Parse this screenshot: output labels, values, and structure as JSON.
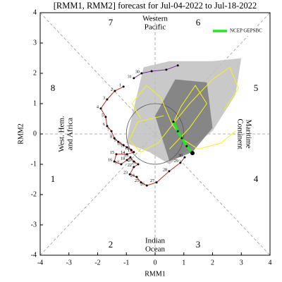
{
  "chart_data": {
    "type": "phase",
    "title": "[RMM1, RMM2] forecast for Jul-04-2022 to Jul-18-2022",
    "x_label": "RMM1",
    "y_label": "RMM2",
    "xlim": [
      -4,
      4
    ],
    "ylim": [
      -4,
      4
    ],
    "xticks": [
      -4,
      -3,
      -2,
      -1,
      0,
      1,
      2,
      3,
      4
    ],
    "yticks": [
      -4,
      -3,
      -2,
      -1,
      0,
      1,
      2,
      3,
      4
    ],
    "phase_labels": [
      "1",
      "2",
      "3",
      "4",
      "5",
      "6",
      "7",
      "8"
    ],
    "region_labels": [
      [
        "Western",
        "Pacific"
      ],
      [
        "Indian",
        "Ocean"
      ],
      [
        "West. Hem.",
        "and Africa"
      ],
      [
        "Maritime",
        "Continent"
      ]
    ],
    "spread": [
      {
        "color": "#c0c0c0",
        "x": [
          -0.9,
          -0.4,
          0.5,
          2.0,
          3.0,
          2.8,
          2.0,
          0.5,
          -0.2,
          -1.0
        ],
        "y": [
          0.2,
          2.2,
          2.4,
          2.4,
          2.5,
          1.3,
          0.1,
          -1.0,
          -0.6,
          -0.3
        ]
      },
      {
        "color": "#7a7a7a",
        "x": [
          0.0,
          0.7,
          1.8,
          2.0,
          1.3,
          0.5
        ],
        "y": [
          0.6,
          1.8,
          1.7,
          0.2,
          -0.6,
          -0.9
        ]
      }
    ],
    "ensemble": {
      "color": "#f2f21e",
      "members": [
        {
          "x": [
            0.6,
            1.2,
            2.0,
            2.6,
            2.9,
            2.4
          ],
          "y": [
            0.3,
            1.0,
            1.8,
            2.2,
            1.5,
            0.8
          ]
        },
        {
          "x": [
            0.6,
            0.2,
            -0.3,
            -0.8,
            -0.5
          ],
          "y": [
            0.3,
            1.2,
            1.6,
            1.0,
            0.5
          ]
        },
        {
          "x": [
            0.6,
            1.0,
            1.5,
            2.3,
            2.8
          ],
          "y": [
            0.3,
            -0.2,
            -0.5,
            -0.3,
            0.1
          ]
        },
        {
          "x": [
            0.6,
            0.9,
            1.4,
            1.8,
            1.2,
            0.5
          ],
          "y": [
            0.3,
            0.9,
            1.6,
            1.0,
            0.2,
            -0.5
          ]
        },
        {
          "x": [
            0.6,
            0.1,
            -0.5,
            -0.9,
            -0.6,
            0.3
          ],
          "y": [
            0.3,
            -0.3,
            -0.6,
            -0.2,
            0.4,
            0.6
          ]
        }
      ]
    },
    "observed": [
      {
        "color": "#7030a0",
        "x": [
          0.79,
          0.39,
          -0.12,
          -0.47,
          -0.74
        ],
        "y": [
          2.26,
          2.12,
          2.07,
          2.0,
          1.84
        ],
        "labels": [
          null,
          null,
          null,
          "30",
          "31"
        ]
      },
      {
        "color": "#cc2222",
        "x": [
          -1.1,
          -1.4,
          -1.67,
          -1.89,
          -1.72,
          -1.67,
          -1.52,
          -1.42,
          -1.28,
          -1.1,
          -0.98,
          -0.83,
          -0.74,
          -0.98,
          -1.35,
          -1.42,
          -1.18,
          -0.98,
          -0.86,
          -0.74,
          -0.59,
          -0.74,
          -0.88,
          -0.64,
          -0.49,
          -0.29,
          0.05,
          0.49,
          0.88,
          1.03
        ],
        "y": [
          1.56,
          1.42,
          1.14,
          0.84,
          0.56,
          0.26,
          0.09,
          -0.14,
          -0.26,
          -0.37,
          -0.44,
          -0.53,
          -0.6,
          -0.67,
          -0.67,
          -0.91,
          -1.0,
          -0.86,
          -0.77,
          -0.91,
          -1.0,
          -1.09,
          -1.33,
          -1.42,
          -1.6,
          -1.7,
          -1.6,
          -1.23,
          -0.95,
          -0.77
        ],
        "labels": [
          "1",
          "2",
          "3",
          "4",
          "5",
          "6",
          "7",
          "8",
          "9",
          "10",
          "11",
          "12",
          "13",
          "14",
          "15",
          "16",
          "17",
          "18",
          "19",
          "20",
          "21",
          "22",
          "23",
          "24",
          "25",
          "26",
          "27",
          "28",
          "29",
          "30"
        ]
      }
    ],
    "series": [
      {
        "name": "NCEP GEPSBC",
        "color": "#22e822",
        "x": [
          0.64,
          0.79,
          0.93,
          1.1,
          1.3
        ],
        "y": [
          0.4,
          0.09,
          -0.14,
          -0.4,
          -0.63
        ]
      }
    ]
  }
}
